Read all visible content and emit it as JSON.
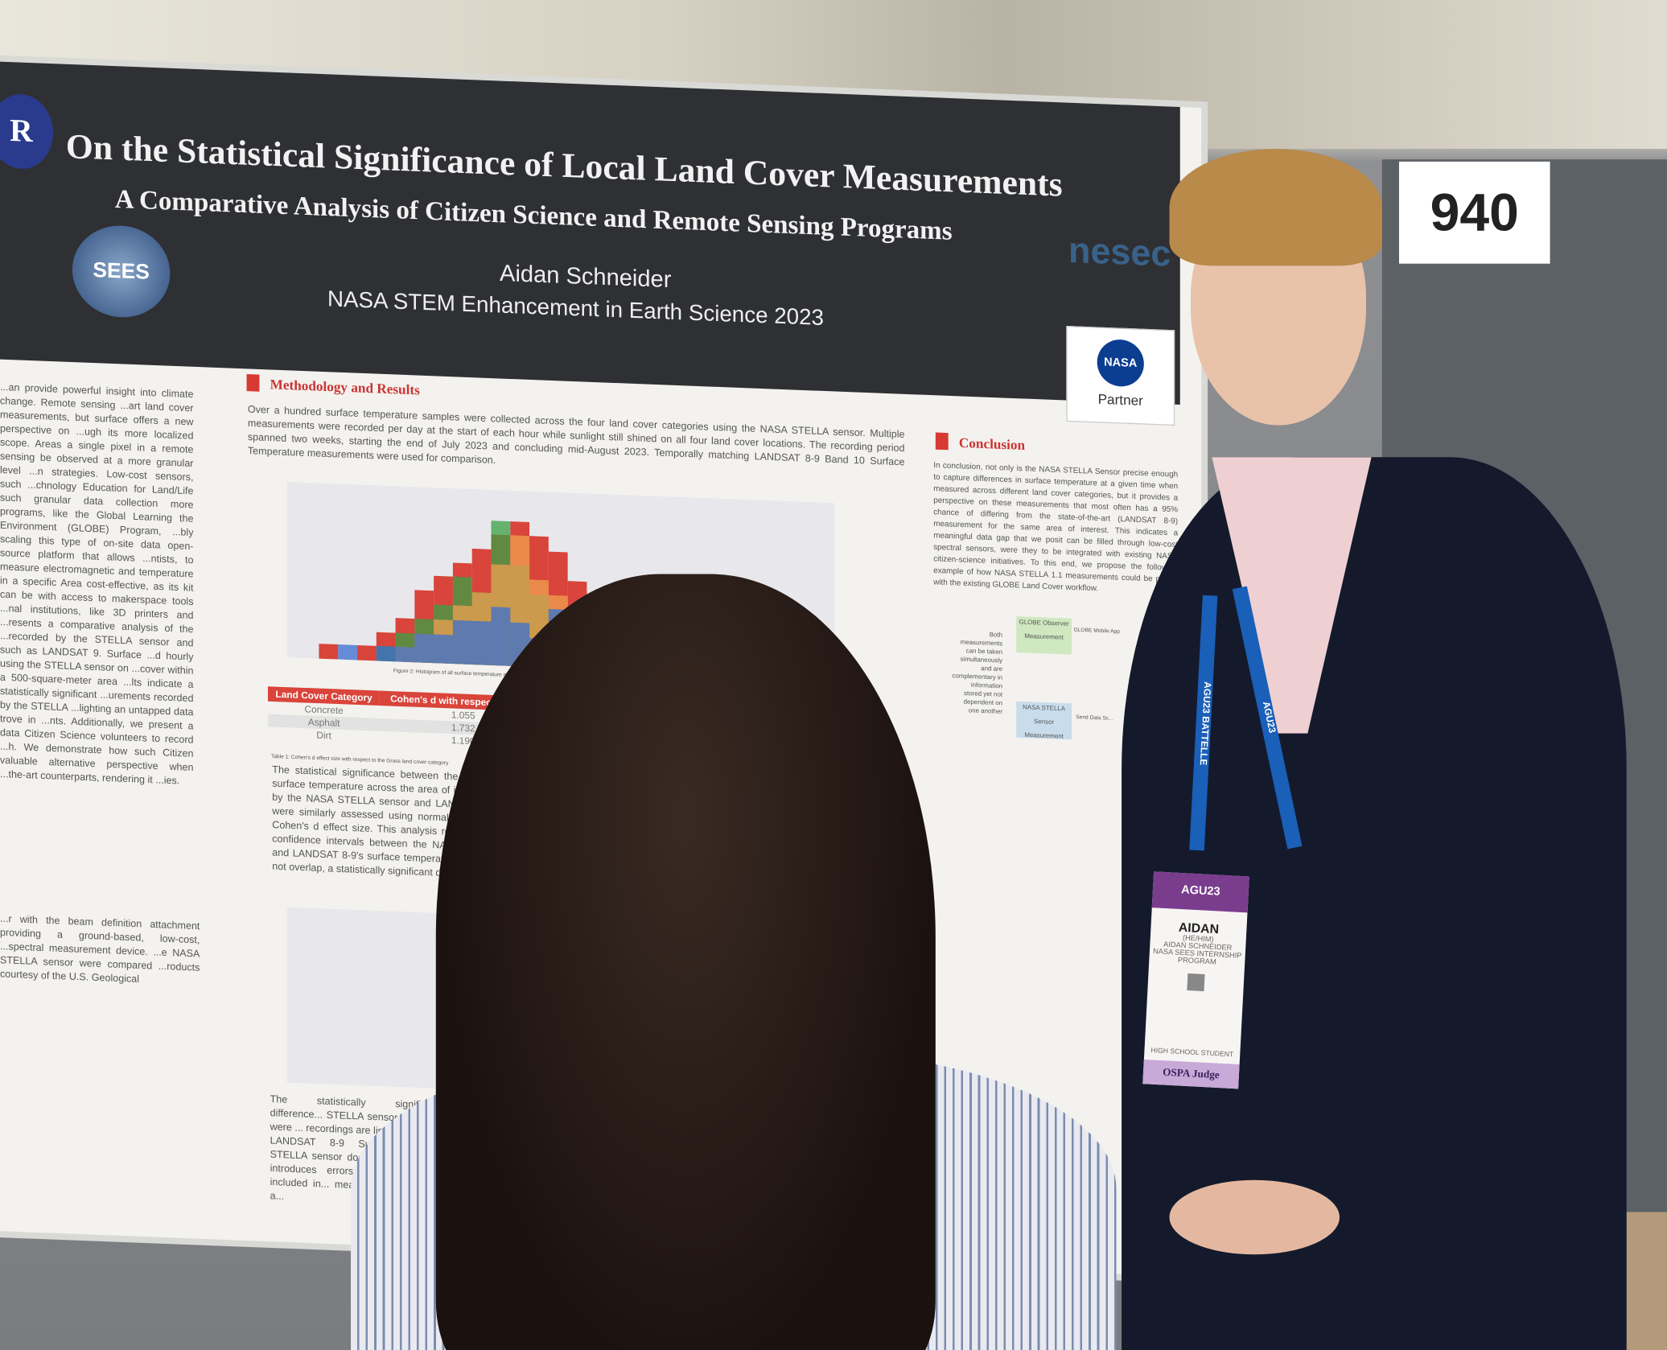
{
  "booth_number": "940",
  "poster": {
    "title": "On the Statistical Significance of Local Land Cover Measurements",
    "subtitle": "A Comparative Analysis of Citizen Science and Remote Sensing Programs",
    "author": "Aidan Schneider",
    "program": "NASA STEM Enhancement in Earth Science 2023",
    "logos": {
      "sees": "SEES",
      "nesec": "nesec",
      "nasa": "NASA",
      "partner": "Partner",
      "left": "R"
    },
    "methodology_heading": "Methodology and Results",
    "methodology_text": "Over a hundred surface temperature samples were collected across the four land cover categories using the NASA STELLA sensor. Multiple measurements were recorded per day at the start of each hour while sunlight still shined on all four land cover locations. The recording period spanned two weeks, starting the end of July 2023 and concluding mid-August 2023. Temporally matching LANDSAT 8-9 Band 10 Surface Temperature measurements were used for comparison.",
    "left_text": "...an provide powerful insight into climate change. Remote sensing ...art land cover measurements, but surface offers a new perspective on ...ugh its more localized scope. Areas a single pixel in a remote sensing be observed at a more granular level ...n strategies. Low-cost sensors, such ...chnology Education for Land/Life such granular data collection more programs, like the Global Learning the Environment (GLOBE) Program, ...bly scaling this type of on-site data open-source platform that allows ...ntists, to measure electromagnetic and temperature in a specific Area cost-effective, as its kit can be with access to makerspace tools ...nal institutions, like 3D printers and ...resents a comparative analysis of the ...recorded by the STELLA sensor and such as LANDSAT 9. Surface ...d hourly using the STELLA sensor on ...cover within a 500-square-meter area ...lts indicate a statistically significant ...urements recorded by the STELLA ...lighting an untapped data trove in ...nts. Additionally, we present a data Citizen Science volunteers to record ...h. We demonstrate how such Citizen valuable alternative perspective when ...the-art counterparts, rendering it ...ies.",
    "left_text_2": "...r with the beam definition attachment providing a ground-based, low-cost, ...spectral measurement device. ...e NASA STELLA sensor were compared ...roducts courtesy of the U.S. Geological",
    "figure2_caption": "Figure 2: Histogram of all surface temperature measurements across the four land cover categories",
    "table": {
      "headers": [
        "Land Cover Category",
        "Cohen's d with respect to Grass"
      ],
      "rows": [
        [
          "Concrete",
          "1.055"
        ],
        [
          "Asphalt",
          "1.732"
        ],
        [
          "Dirt",
          "1.190"
        ]
      ],
      "caption": "Table 1: Cohen's d effect size with respect to the Grass land cover category"
    },
    "significance_text": "The statistical significance between the measurements of surface temperature across the area of interest as recorded by the NASA STELLA sensor and LANDSAT 8-9 Band 10 were similarly assessed using normal approximations and Cohen's d effect size. This analysis revealed that the 95% confidence intervals between the NASA STELLA sensor's and LANDSAT 8-9's surface temperature readings will often not overlap, a statistically significant discrepancy.",
    "bottom_text": "The statistically significant difference... STELLA sensor readings were ... recordings are limited by its ... LANDSAT 8-9 Surface Temp... STELLA sensor does not fa... which introduces errors... area of land included in... measurement styles is a...",
    "conclusion_heading": "Conclusion",
    "conclusion_text": "In conclusion, not only is the NASA STELLA Sensor precise enough to capture differences in surface temperature at a given time when measured across different land cover categories, but it provides a perspective on these measurements that most often has a 95% chance of differing from the state-of-the-art (LANDSAT 8-9) measurement for the same area of interest. This indicates a meaningful data gap that we posit can be filled through low-cost spectral sensors, were they to be integrated with existing NASA citizen-science initiatives. To this end, we propose the following example of how NASA STELLA 1.1 measurements could be paired with the existing GLOBE Land Cover workflow.",
    "diagram": {
      "note": "Both measurements can be taken simultaneously and are complementary in information stored yet not dependent on one another",
      "box1": "GLOBE Observer Measurement",
      "box2": "NASA STELLA Sensor Measurement",
      "arrow1": "GLOBE Mobile App",
      "arrow2": "Send Data Sc..."
    }
  },
  "chart_data": {
    "type": "bar",
    "title": "",
    "series_colors": [
      "#d9443b",
      "#3aa046",
      "#f0a050",
      "#3a6fd0"
    ],
    "note": "Overlapping histograms of surface temperature per land cover category; values approximate",
    "series": [
      {
        "values": [
          1,
          0,
          1,
          2,
          3,
          5,
          6,
          7,
          8,
          9,
          10,
          9,
          8,
          6,
          5,
          4,
          3,
          2,
          1,
          1
        ]
      },
      {
        "values": [
          0,
          0,
          0,
          1,
          2,
          3,
          4,
          6,
          5,
          10,
          7,
          5,
          4,
          3,
          2,
          2,
          1,
          0,
          0,
          0
        ]
      },
      {
        "values": [
          0,
          0,
          0,
          0,
          1,
          2,
          3,
          4,
          5,
          7,
          9,
          6,
          5,
          4,
          3,
          2,
          1,
          1,
          0,
          0
        ]
      },
      {
        "values": [
          0,
          1,
          0,
          1,
          1,
          2,
          2,
          3,
          3,
          4,
          3,
          2,
          4,
          3,
          2,
          1,
          1,
          0,
          0,
          0
        ]
      }
    ]
  },
  "badge": {
    "event": "AGU23",
    "name": "AIDAN",
    "pronouns": "(HE/HIM)",
    "full_name": "AIDAN SCHNEIDER",
    "org": "NASA SEES INTERNSHIP PROGRAM",
    "category": "HIGH SCHOOL STUDENT",
    "role": "OSPA Judge"
  },
  "lanyard": {
    "text1": "AGU23",
    "text2": "BATTELLE"
  }
}
